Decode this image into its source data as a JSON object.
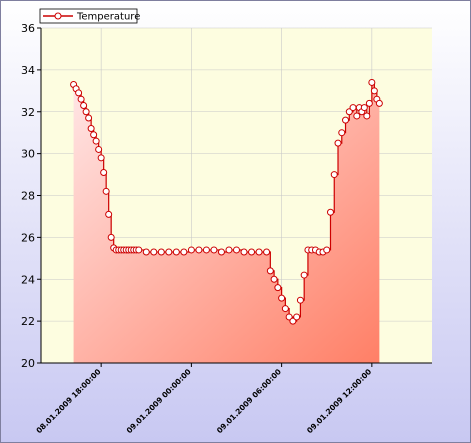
{
  "chart_data": {
    "type": "area",
    "title": "",
    "xlabel": "",
    "ylabel": "",
    "ylim": [
      20,
      36
    ],
    "yticks": [
      "20",
      "22",
      "24",
      "26",
      "28",
      "30",
      "32",
      "34",
      "36"
    ],
    "xlim": [
      "08.01.2009 14:00:00",
      "09.01.2009 16:00:00"
    ],
    "xticks": [
      "08.01.2009 18:00:00",
      "09.01.2009 00:00:00",
      "09.01.2009 06:00:00",
      "09.01.2009 12:00:00"
    ],
    "legend_position": "top-left",
    "colors": {
      "line": "#cc0000",
      "marker_fill": "#ffffff",
      "fill_top": "#ffe6e6",
      "fill_bottom": "#ff7f66",
      "plot_bg": "#fdfde0",
      "page_bg_top": "#ffffff",
      "page_bg_bottom": "#c8c8f2"
    },
    "series": [
      {
        "name": "Temperature",
        "x": [
          "08.01.2009 16:10",
          "08.01.2009 16:20",
          "08.01.2009 16:30",
          "08.01.2009 16:40",
          "08.01.2009 16:50",
          "08.01.2009 17:00",
          "08.01.2009 17:10",
          "08.01.2009 17:20",
          "08.01.2009 17:30",
          "08.01.2009 17:40",
          "08.01.2009 17:50",
          "08.01.2009 18:00",
          "08.01.2009 18:10",
          "08.01.2009 18:20",
          "08.01.2009 18:30",
          "08.01.2009 18:40",
          "08.01.2009 18:50",
          "08.01.2009 19:00",
          "08.01.2009 19:10",
          "08.01.2009 19:20",
          "08.01.2009 19:30",
          "08.01.2009 19:40",
          "08.01.2009 19:50",
          "08.01.2009 20:00",
          "08.01.2009 20:10",
          "08.01.2009 20:20",
          "08.01.2009 20:30",
          "08.01.2009 21:00",
          "08.01.2009 21:30",
          "08.01.2009 22:00",
          "08.01.2009 22:30",
          "08.01.2009 23:00",
          "08.01.2009 23:30",
          "09.01.2009 00:00",
          "09.01.2009 00:30",
          "09.01.2009 01:00",
          "09.01.2009 01:30",
          "09.01.2009 02:00",
          "09.01.2009 02:30",
          "09.01.2009 03:00",
          "09.01.2009 03:30",
          "09.01.2009 04:00",
          "09.01.2009 04:30",
          "09.01.2009 05:00",
          "09.01.2009 05:15",
          "09.01.2009 05:30",
          "09.01.2009 05:45",
          "09.01.2009 06:00",
          "09.01.2009 06:15",
          "09.01.2009 06:30",
          "09.01.2009 06:45",
          "09.01.2009 07:00",
          "09.01.2009 07:15",
          "09.01.2009 07:30",
          "09.01.2009 07:45",
          "09.01.2009 08:00",
          "09.01.2009 08:15",
          "09.01.2009 08:30",
          "09.01.2009 08:45",
          "09.01.2009 09:00",
          "09.01.2009 09:15",
          "09.01.2009 09:30",
          "09.01.2009 09:45",
          "09.01.2009 10:00",
          "09.01.2009 10:15",
          "09.01.2009 10:30",
          "09.01.2009 10:45",
          "09.01.2009 11:00",
          "09.01.2009 11:10",
          "09.01.2009 11:20",
          "09.01.2009 11:30",
          "09.01.2009 11:40",
          "09.01.2009 11:50",
          "09.01.2009 12:00",
          "09.01.2009 12:10",
          "09.01.2009 12:20",
          "09.01.2009 12:30"
        ],
        "y": [
          33.3,
          33.1,
          32.9,
          32.6,
          32.3,
          32.0,
          31.7,
          31.2,
          30.9,
          30.6,
          30.2,
          29.8,
          29.1,
          28.2,
          27.1,
          26.0,
          25.5,
          25.4,
          25.4,
          25.4,
          25.4,
          25.4,
          25.4,
          25.4,
          25.4,
          25.4,
          25.4,
          25.3,
          25.3,
          25.3,
          25.3,
          25.3,
          25.3,
          25.4,
          25.4,
          25.4,
          25.4,
          25.3,
          25.4,
          25.4,
          25.3,
          25.3,
          25.3,
          25.3,
          24.4,
          24.0,
          23.6,
          23.1,
          22.6,
          22.2,
          22.0,
          22.2,
          23.0,
          24.2,
          25.4,
          25.4,
          25.4,
          25.3,
          25.3,
          25.4,
          27.2,
          29.0,
          30.5,
          31.0,
          31.6,
          32.0,
          32.2,
          31.8,
          32.2,
          32.0,
          32.2,
          31.8,
          32.4,
          33.4,
          33.0,
          32.6,
          32.4
        ]
      }
    ]
  }
}
